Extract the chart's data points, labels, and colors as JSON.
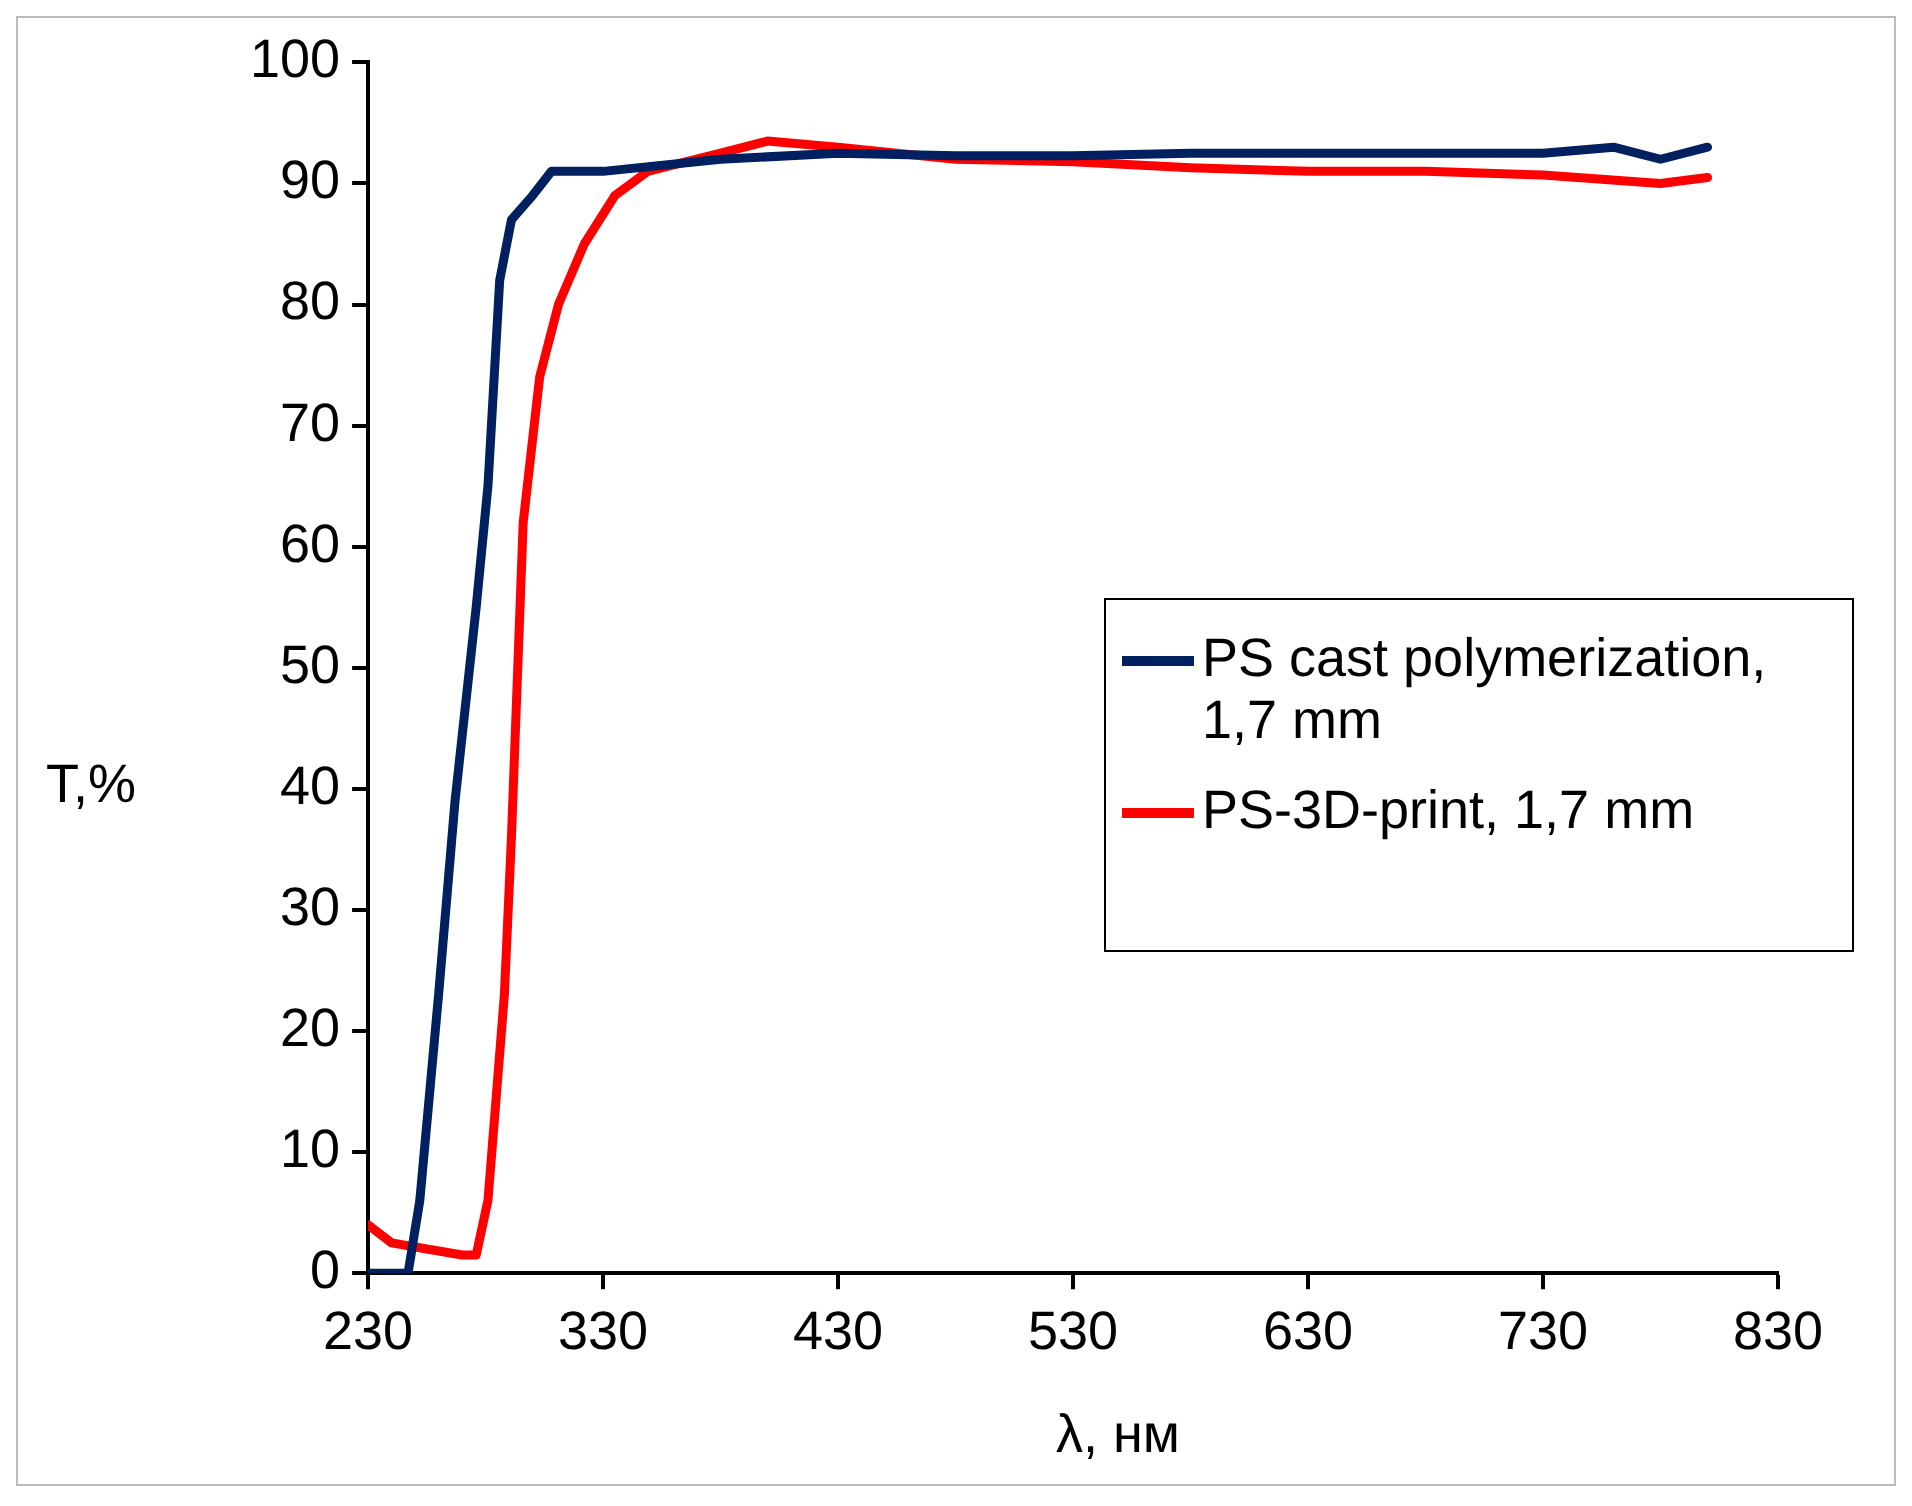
{
  "chart_data": {
    "type": "line",
    "xlabel": "λ, нм",
    "ylabel": "T,%",
    "xlim": [
      230,
      830
    ],
    "xticks": [
      230,
      330,
      430,
      530,
      630,
      730,
      830
    ],
    "ylim": [
      0,
      100
    ],
    "yticks": [
      0,
      10,
      20,
      30,
      40,
      50,
      60,
      70,
      80,
      90,
      100
    ],
    "grid": false,
    "legend": "right",
    "marker": "none",
    "line_style": "solid",
    "series": [
      {
        "name": "PS cast polymerization, 1,7 mm",
        "color": "#002060",
        "x": [
          230,
          247,
          252,
          260,
          267,
          276,
          281,
          286,
          291,
          300,
          308,
          330,
          380,
          430,
          480,
          530,
          580,
          630,
          680,
          730,
          760,
          780,
          800
        ],
        "values": [
          0,
          0,
          6,
          23,
          39,
          55,
          65,
          82,
          87,
          89,
          91,
          91,
          92,
          92.5,
          92.3,
          92.3,
          92.5,
          92.5,
          92.5,
          92.5,
          93,
          92,
          93
        ]
      },
      {
        "name": "PS-3D-print, 1,7 mm",
        "color": "#ff0000",
        "x": [
          230,
          240,
          255,
          270,
          276,
          281,
          288,
          291,
          296,
          303,
          311,
          322,
          335,
          349,
          380,
          400,
          430,
          480,
          530,
          580,
          630,
          680,
          730,
          780,
          800
        ],
        "values": [
          4,
          2.5,
          2,
          1.5,
          1.5,
          6,
          23,
          36,
          62,
          74,
          80,
          85,
          89,
          91,
          92.5,
          93.5,
          93,
          92,
          91.8,
          91.3,
          91,
          91,
          90.7,
          90,
          90.5
        ]
      }
    ]
  }
}
